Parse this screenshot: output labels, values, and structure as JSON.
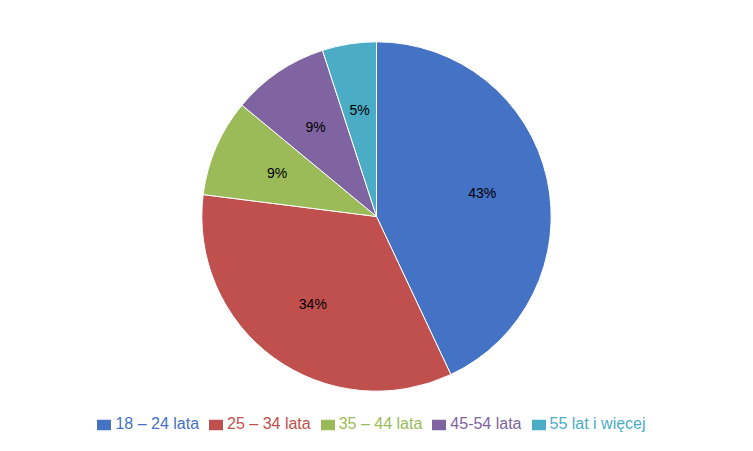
{
  "chart_data": {
    "type": "pie",
    "categories": [
      "18 – 24 lata",
      "25 – 34 lata",
      "35 – 44 lata",
      "45-54 lata",
      "55 lat i więcej"
    ],
    "values": [
      43,
      34,
      9,
      9,
      5
    ],
    "value_labels": [
      "43%",
      "34%",
      "9%",
      "9%",
      "5%"
    ],
    "colors": [
      "#4472C4",
      "#C0504D",
      "#9BBB59",
      "#8064A2",
      "#4BACC6"
    ],
    "data_labels": true,
    "legend": "bottom"
  }
}
